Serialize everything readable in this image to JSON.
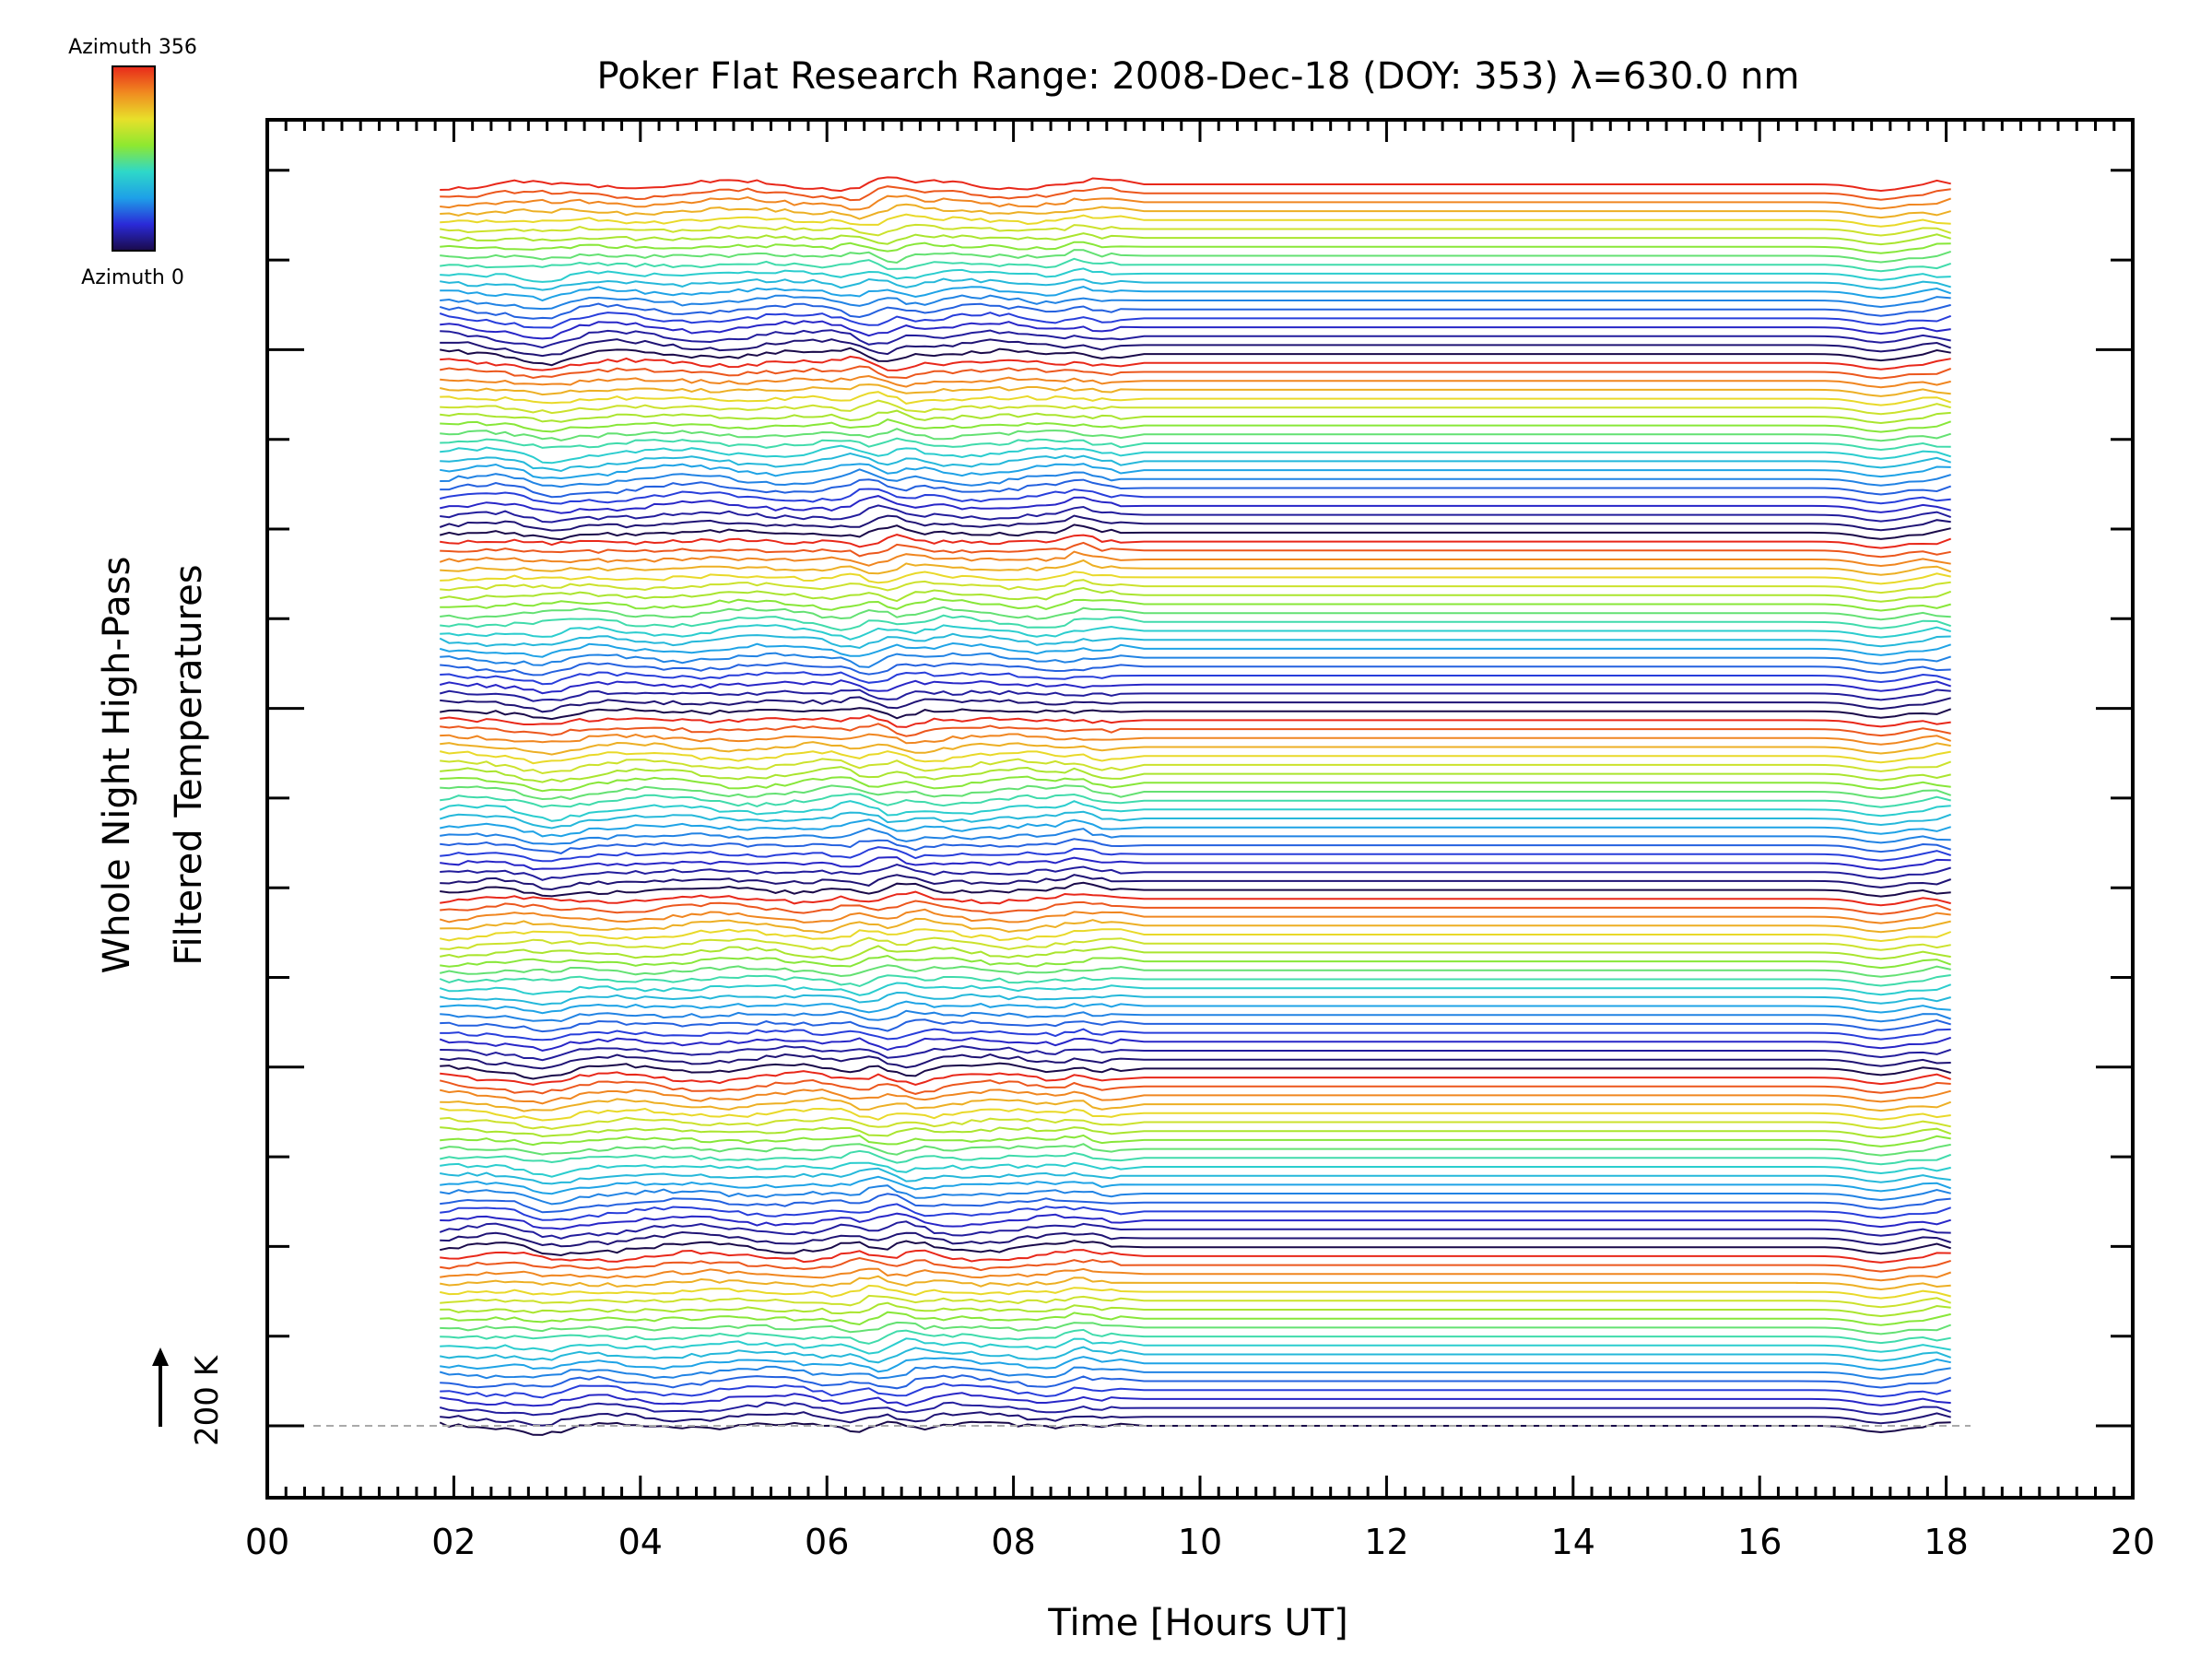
{
  "chart_data": {
    "type": "line",
    "title": "Poker Flat Research Range: 2008-Dec-18 (DOY: 353) λ=630.0 nm",
    "xlabel": "Time [Hours UT]",
    "ylabel": [
      "Whole Night High-Pass",
      "Filtered Temperatures"
    ],
    "xlim": [
      0,
      20
    ],
    "x_tick_labels": [
      "00",
      "02",
      "04",
      "06",
      "08",
      "10",
      "12",
      "14",
      "16",
      "18",
      "20"
    ],
    "scale_bar_label": "200 K",
    "colorbar": {
      "top_label": "Azimuth 356",
      "bottom_label": "Azimuth 0",
      "colormap": [
        "#1a0a4a",
        "#2a2ad8",
        "#1ea0e8",
        "#2ed8c8",
        "#8ee830",
        "#e8e02a",
        "#f08a20",
        "#e8281a"
      ]
    },
    "series_count": 140,
    "time_range_hours": [
      1.85,
      18.15
    ],
    "grid": false,
    "legend": "colorbar top-left"
  }
}
